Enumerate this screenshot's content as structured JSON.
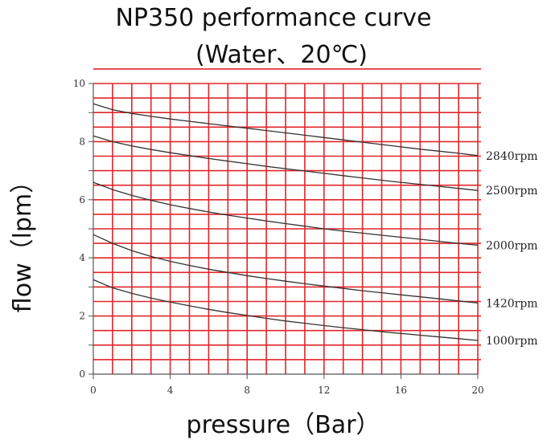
{
  "chart_data": {
    "type": "line",
    "title": "NP350 performance curve",
    "subtitle": "(Water、20℃)",
    "xlabel": "pressure（Bar）",
    "ylabel": "flow（lpm）",
    "xlim": [
      0,
      20
    ],
    "ylim": [
      0,
      10
    ],
    "x_ticks": [
      "0",
      "4",
      "8",
      "12",
      "16",
      "20"
    ],
    "y_ticks": [
      "0",
      "2",
      "4",
      "6",
      "8",
      "10"
    ],
    "grid": true,
    "grid_color": "#e0262a",
    "axis_color": "#555555",
    "line_color": "#333333",
    "legend": "labels at right end of each curve",
    "x": [
      0,
      1,
      2,
      3,
      4,
      5,
      6,
      7,
      8,
      9,
      10,
      11,
      12,
      13,
      14,
      15,
      16,
      17,
      18,
      19,
      20
    ],
    "series": [
      {
        "name": "2840rpm",
        "values": [
          9.3,
          9.1,
          8.97,
          8.87,
          8.78,
          8.7,
          8.62,
          8.54,
          8.46,
          8.38,
          8.3,
          8.22,
          8.14,
          8.06,
          7.98,
          7.9,
          7.82,
          7.74,
          7.67,
          7.6,
          7.52
        ]
      },
      {
        "name": "2500rpm",
        "values": [
          8.2,
          8.0,
          7.85,
          7.73,
          7.62,
          7.52,
          7.42,
          7.33,
          7.24,
          7.15,
          7.07,
          6.99,
          6.91,
          6.83,
          6.75,
          6.67,
          6.6,
          6.53,
          6.46,
          6.39,
          6.32
        ]
      },
      {
        "name": "2000rpm",
        "values": [
          6.6,
          6.35,
          6.15,
          5.98,
          5.83,
          5.7,
          5.58,
          5.47,
          5.37,
          5.27,
          5.18,
          5.09,
          5.0,
          4.92,
          4.85,
          4.78,
          4.71,
          4.64,
          4.57,
          4.5,
          4.44
        ]
      },
      {
        "name": "1420rpm",
        "values": [
          4.8,
          4.5,
          4.25,
          4.05,
          3.88,
          3.74,
          3.61,
          3.5,
          3.39,
          3.29,
          3.2,
          3.11,
          3.03,
          2.95,
          2.87,
          2.8,
          2.73,
          2.66,
          2.59,
          2.52,
          2.45
        ]
      },
      {
        "name": "1000rpm",
        "values": [
          3.25,
          2.97,
          2.78,
          2.62,
          2.48,
          2.35,
          2.23,
          2.12,
          2.02,
          1.92,
          1.83,
          1.75,
          1.67,
          1.6,
          1.53,
          1.46,
          1.4,
          1.34,
          1.28,
          1.22,
          1.16
        ]
      }
    ]
  }
}
